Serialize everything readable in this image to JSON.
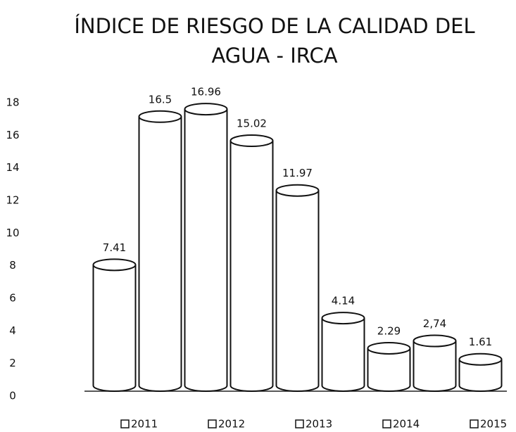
{
  "chart_data": {
    "type": "cylinder-bar",
    "title": "ÍNDICE DE RIESGO DE LA CALIDAD DEL AGUA - IRCA",
    "series": [
      {
        "name": "2011",
        "color": "#ffffff",
        "values": [
          7.41,
          16.5
        ]
      },
      {
        "name": "2012",
        "color": "#ffffff",
        "values": [
          16.96,
          15.02
        ]
      },
      {
        "name": "2013",
        "color": "#ffffff",
        "values": [
          11.97,
          4.14
        ]
      },
      {
        "name": "2014",
        "color": "#ffffff",
        "values": [
          2.29,
          2.74
        ],
        "value_labels": [
          "2.29",
          "2,74"
        ]
      },
      {
        "name": "2015",
        "color": "#ffffff",
        "values": [
          1.61,
          null
        ]
      }
    ],
    "ylim": [
      0,
      18
    ],
    "yticks": [
      0,
      2,
      4,
      6,
      8,
      10,
      12,
      14,
      16,
      18
    ],
    "grid": false,
    "legend": "bottom"
  }
}
